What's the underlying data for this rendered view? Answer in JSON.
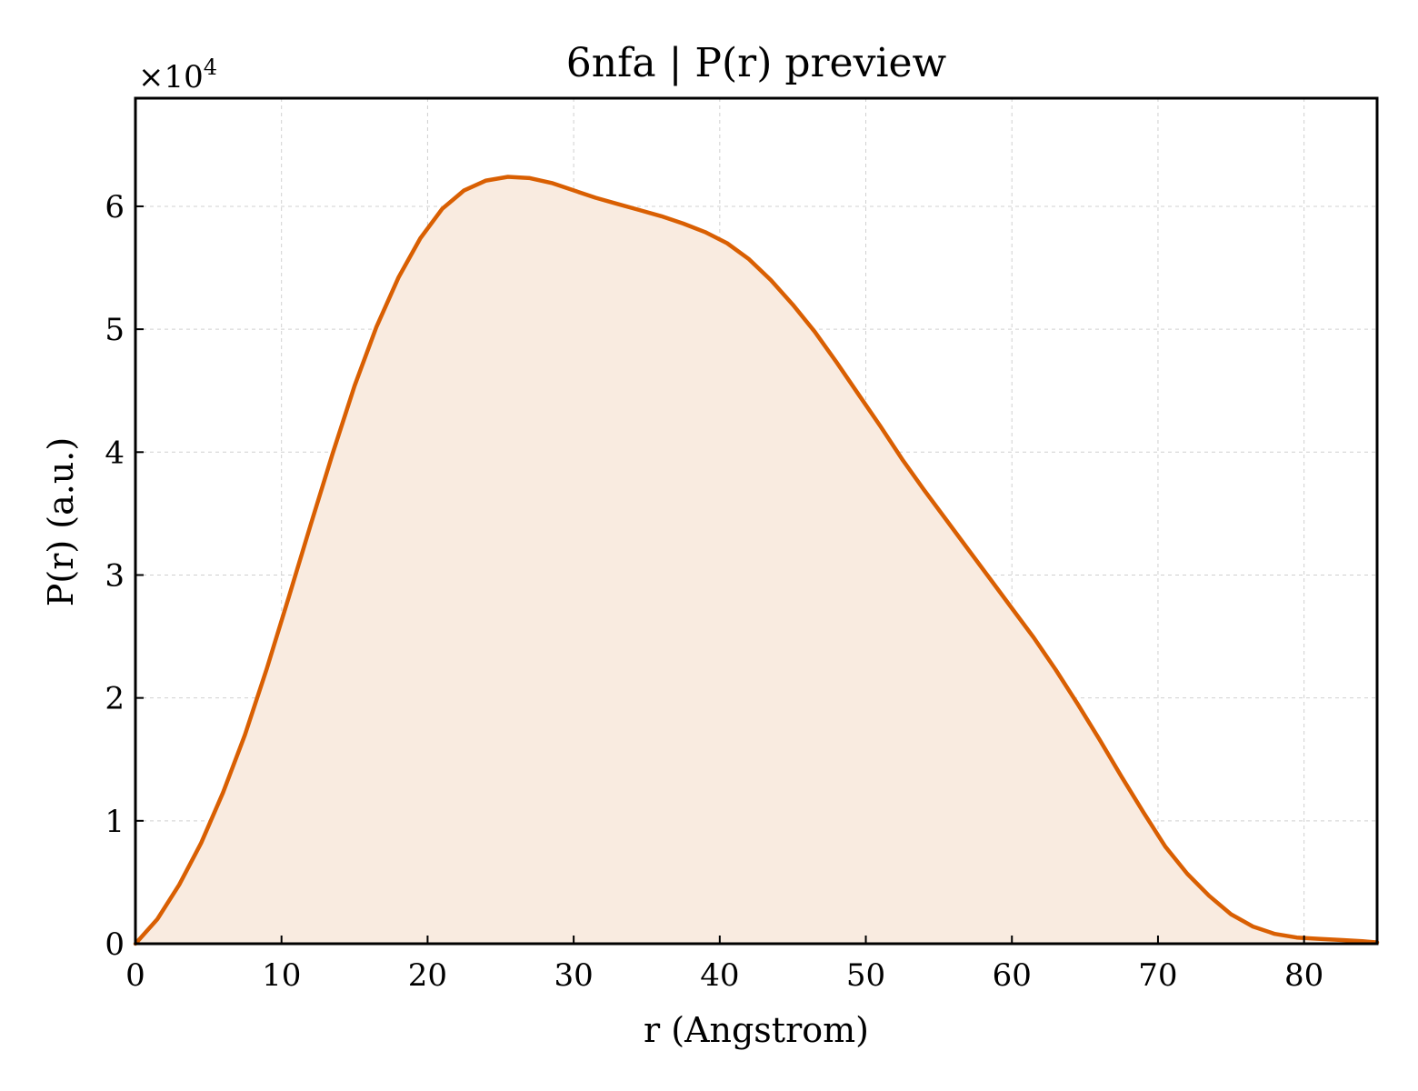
{
  "chart_data": {
    "type": "area",
    "title": "6nfa | P(r) preview",
    "xlabel": "r (Angstrom)",
    "ylabel": "P(r) (a.u.)",
    "y_multiplier_base": "×10",
    "y_multiplier_exp": "4",
    "xlim": [
      0,
      85
    ],
    "ylim": [
      0,
      6.88
    ],
    "x_ticks": [
      0,
      10,
      20,
      30,
      40,
      50,
      60,
      70,
      80
    ],
    "y_ticks": [
      0,
      1,
      2,
      3,
      4,
      5,
      6
    ],
    "grid": true,
    "colors": {
      "line": "#d95f02",
      "fill": "#f9ebe0"
    },
    "series": [
      {
        "x": [
          0,
          1.5,
          3,
          4.5,
          6,
          7.5,
          9,
          10.5,
          12,
          13.5,
          15,
          16.5,
          18,
          19.5,
          21,
          22.5,
          24,
          25.5,
          27,
          28.5,
          30,
          31.5,
          33,
          34.5,
          36,
          37.5,
          39,
          40.5,
          42,
          43.5,
          45,
          46.5,
          48,
          49.5,
          51,
          52.5,
          54,
          55.5,
          57,
          58.5,
          60,
          61.5,
          63,
          64.5,
          66,
          67.5,
          69,
          70.5,
          72,
          73.5,
          75,
          76.5,
          78,
          79.5,
          81,
          82.5,
          84,
          85
        ],
        "y": [
          0,
          0.2,
          0.48,
          0.82,
          1.23,
          1.7,
          2.24,
          2.82,
          3.41,
          3.99,
          4.54,
          5.02,
          5.42,
          5.74,
          5.98,
          6.13,
          6.21,
          6.24,
          6.23,
          6.19,
          6.13,
          6.07,
          6.02,
          5.97,
          5.92,
          5.86,
          5.79,
          5.7,
          5.57,
          5.4,
          5.2,
          4.98,
          4.73,
          4.47,
          4.21,
          3.94,
          3.69,
          3.45,
          3.21,
          2.97,
          2.73,
          2.49,
          2.23,
          1.95,
          1.66,
          1.36,
          1.07,
          0.79,
          0.57,
          0.39,
          0.24,
          0.14,
          0.08,
          0.05,
          0.04,
          0.03,
          0.02,
          0.01
        ]
      }
    ]
  }
}
